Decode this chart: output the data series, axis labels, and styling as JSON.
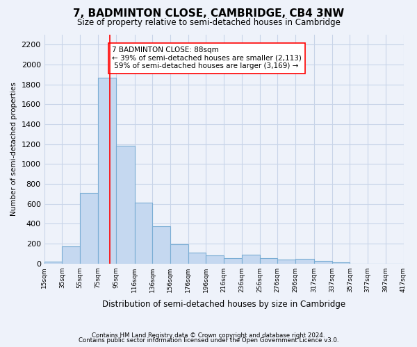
{
  "title": "7, BADMINTON CLOSE, CAMBRIDGE, CB4 3NW",
  "subtitle": "Size of property relative to semi-detached houses in Cambridge",
  "xlabel": "Distribution of semi-detached houses by size in Cambridge",
  "ylabel": "Number of semi-detached properties",
  "footnote1": "Contains HM Land Registry data © Crown copyright and database right 2024.",
  "footnote2": "Contains public sector information licensed under the Open Government Licence v3.0.",
  "bar_color": "#c5d8f0",
  "bar_edgecolor": "#7aadd4",
  "grid_color": "#c8d4e8",
  "background_color": "#eef2fa",
  "property_size": 88,
  "property_label": "7 BADMINTON CLOSE: 88sqm",
  "pct_smaller": 39,
  "n_smaller": 2113,
  "pct_larger": 59,
  "n_larger": 3169,
  "bin_edges": [
    15,
    35,
    55,
    75,
    95,
    116,
    136,
    156,
    176,
    196,
    216,
    236,
    256,
    276,
    296,
    317,
    337,
    357,
    377,
    397,
    417
  ],
  "bin_labels": [
    "15sqm",
    "35sqm",
    "55sqm",
    "75sqm",
    "95sqm",
    "116sqm",
    "136sqm",
    "156sqm",
    "176sqm",
    "196sqm",
    "216sqm",
    "236sqm",
    "256sqm",
    "276sqm",
    "296sqm",
    "317sqm",
    "337sqm",
    "357sqm",
    "377sqm",
    "397sqm",
    "417sqm"
  ],
  "values": [
    20,
    175,
    710,
    1870,
    1185,
    610,
    375,
    190,
    110,
    80,
    55,
    90,
    55,
    40,
    45,
    25,
    10,
    0,
    0,
    0
  ],
  "ylim": [
    0,
    2300
  ],
  "yticks": [
    0,
    200,
    400,
    600,
    800,
    1000,
    1200,
    1400,
    1600,
    1800,
    2000,
    2200
  ]
}
